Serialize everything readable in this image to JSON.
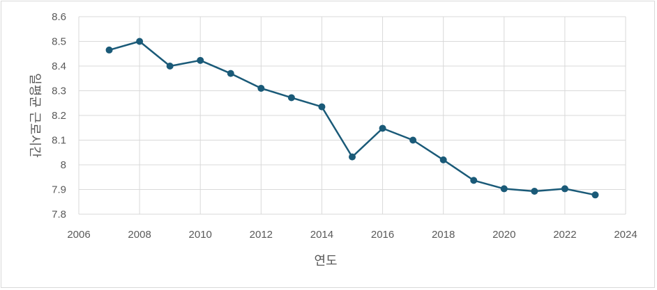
{
  "chart_data": {
    "type": "line",
    "title": "",
    "xlabel": "연도",
    "ylabel": "일평균 근로시간",
    "xlim": [
      2006,
      2024
    ],
    "ylim": [
      7.8,
      8.6
    ],
    "x_ticks": [
      2006,
      2008,
      2010,
      2012,
      2014,
      2016,
      2018,
      2020,
      2022,
      2024
    ],
    "y_ticks": [
      7.8,
      7.9,
      8,
      8.1,
      8.2,
      8.3,
      8.4,
      8.5,
      8.6
    ],
    "y_tick_labels": [
      "7.8",
      "7.9",
      "8",
      "8.1",
      "8.2",
      "8.3",
      "8.4",
      "8.5",
      "8.6"
    ],
    "grid": true,
    "legend": "none",
    "series": [
      {
        "color": "#1a5a78",
        "x": [
          2007,
          2008,
          2009,
          2010,
          2011,
          2012,
          2013,
          2014,
          2015,
          2016,
          2017,
          2018,
          2019,
          2020,
          2021,
          2022,
          2023
        ],
        "values": [
          8.465,
          8.5,
          8.4,
          8.423,
          8.37,
          8.31,
          8.272,
          8.235,
          8.032,
          8.148,
          8.1,
          8.02,
          7.937,
          7.903,
          7.893,
          7.903,
          7.878
        ]
      }
    ]
  }
}
